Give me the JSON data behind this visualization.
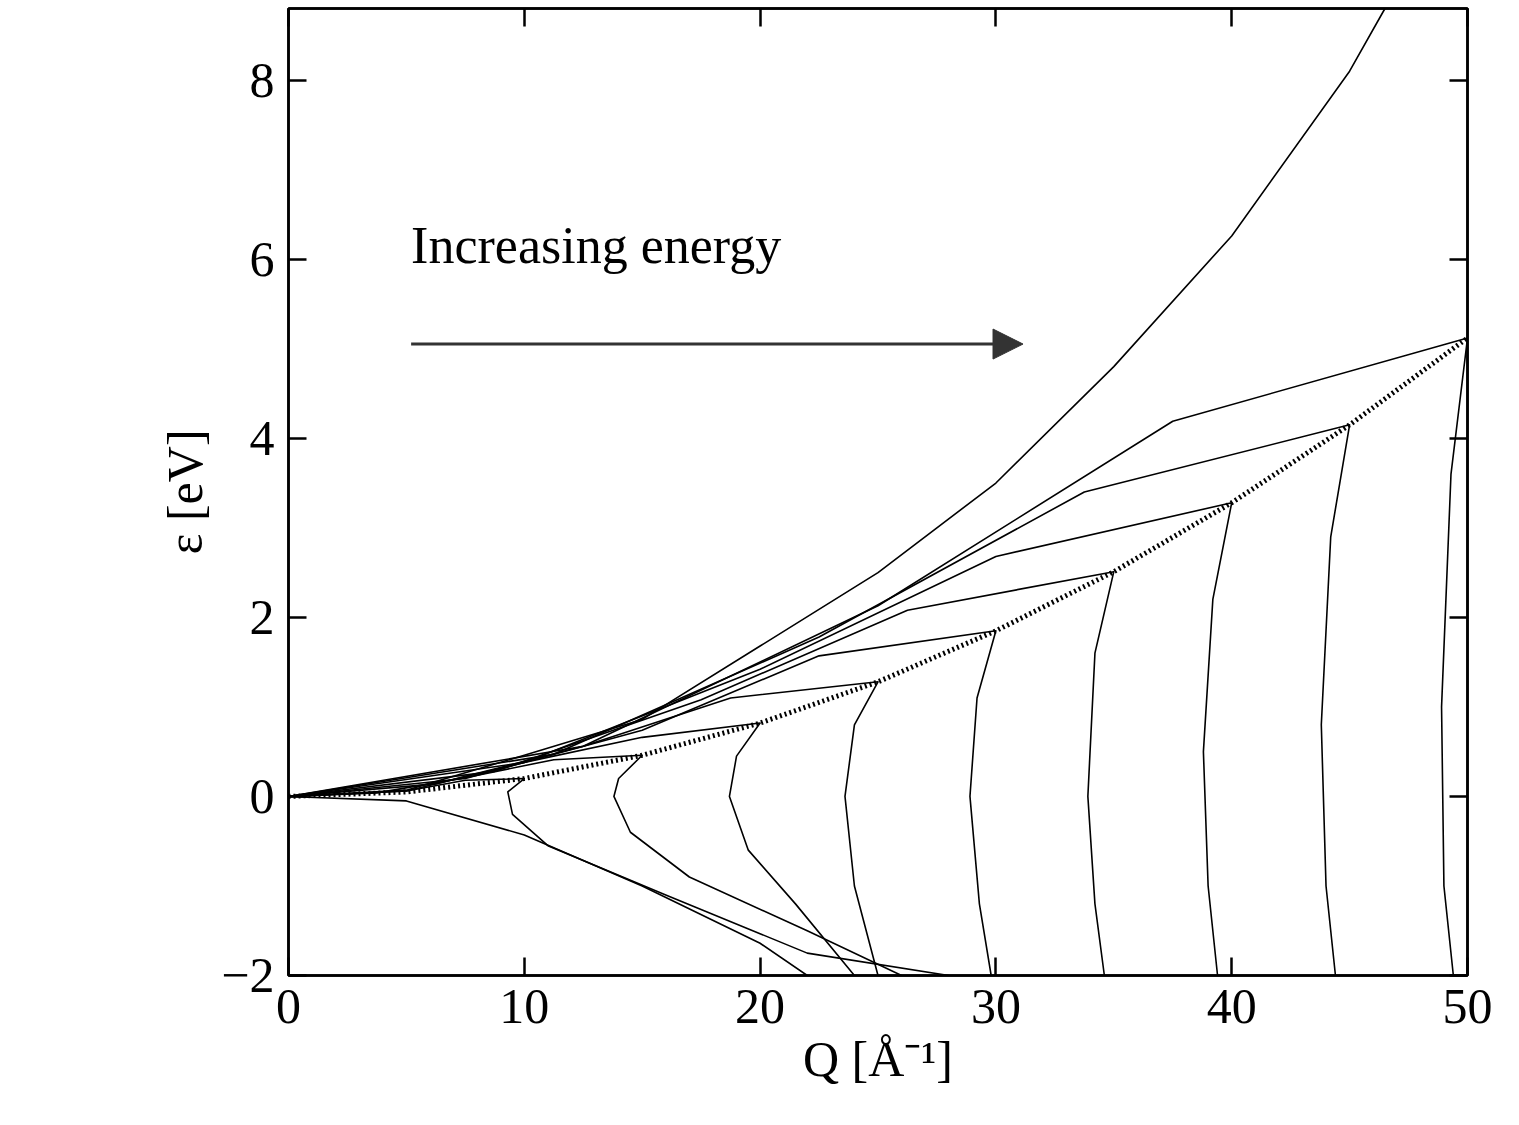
{
  "chart_data": {
    "type": "line",
    "xlabel": "Q [Å⁻¹]",
    "ylabel": "ε [eV]",
    "xlim": [
      0,
      50
    ],
    "ylim": [
      -2,
      8.8
    ],
    "xticks": [
      0,
      10,
      20,
      30,
      40,
      50
    ],
    "yticks": [
      {
        "value": -2,
        "label": "−2"
      },
      0,
      2,
      4,
      6,
      8
    ],
    "grid": false,
    "marker": "none",
    "line_style": "solid",
    "annotations": [
      "Increasing energy"
    ],
    "series": [
      {
        "color": "#000000",
        "line_style": "dotted",
        "x": [
          0,
          5,
          10,
          15,
          20,
          25,
          30,
          35,
          40,
          45,
          50
        ],
        "values": [
          0,
          0.05,
          0.2,
          0.46,
          0.82,
          1.28,
          1.85,
          2.51,
          3.28,
          4.15,
          5.12
        ]
      },
      {
        "color": "#000000",
        "x": [
          0,
          5,
          10,
          15,
          20,
          25,
          30,
          35,
          40,
          45,
          46.5
        ],
        "values": [
          0,
          0.07,
          0.46,
          0.86,
          1.68,
          2.5,
          3.5,
          4.8,
          6.26,
          8.1,
          8.8
        ]
      },
      {
        "color": "#000000",
        "x": [
          0,
          5,
          10,
          15,
          20,
          22
        ],
        "values": [
          0,
          -0.05,
          -0.43,
          -1.0,
          -1.64,
          -2
        ]
      },
      {
        "color": "#000000",
        "x": [
          0,
          2.5,
          5,
          7.5,
          10,
          9.3,
          9.5,
          11,
          16,
          22,
          28
        ],
        "values": [
          0,
          0.03,
          0.06,
          0.18,
          0.2,
          0.05,
          -0.2,
          -0.55,
          -1.1,
          -1.75,
          -2
        ]
      },
      {
        "color": "#000000",
        "x": [
          0,
          3.75,
          7.5,
          11.25,
          15,
          14,
          13.8,
          14.5,
          17,
          22,
          26
        ],
        "values": [
          0,
          0.04,
          0.21,
          0.41,
          0.46,
          0.2,
          0,
          -0.4,
          -0.9,
          -1.5,
          -2
        ]
      },
      {
        "color": "#000000",
        "x": [
          0,
          5,
          10,
          15,
          20,
          19,
          18.7,
          19.5,
          21.5,
          24
        ],
        "values": [
          0,
          0.06,
          0.38,
          0.66,
          0.82,
          0.45,
          0,
          -0.6,
          -1.2,
          -2
        ]
      },
      {
        "color": "#000000",
        "x": [
          0,
          6.25,
          12.5,
          18.75,
          25,
          24,
          23.6,
          24,
          25
        ],
        "values": [
          0,
          0.14,
          0.56,
          1.1,
          1.28,
          0.8,
          0,
          -1,
          -2
        ]
      },
      {
        "color": "#000000",
        "x": [
          0,
          7.5,
          15,
          22.5,
          30,
          29.2,
          28.9,
          29.3,
          29.8
        ],
        "values": [
          0,
          0.2,
          0.74,
          1.57,
          1.85,
          1.1,
          0,
          -1.2,
          -2
        ]
      },
      {
        "color": "#000000",
        "x": [
          0,
          8.75,
          17.5,
          26.25,
          35,
          34.2,
          33.9,
          34.2,
          34.6
        ],
        "values": [
          0,
          0.28,
          1.08,
          2.08,
          2.51,
          1.6,
          0,
          -1.2,
          -2
        ]
      },
      {
        "color": "#000000",
        "x": [
          0,
          10,
          20,
          30,
          40,
          39.2,
          38.8,
          39,
          39.4
        ],
        "values": [
          0,
          0.38,
          1.42,
          2.68,
          3.28,
          2.2,
          0.5,
          -1,
          -2
        ]
      },
      {
        "color": "#000000",
        "x": [
          0,
          11.25,
          22.5,
          33.75,
          45,
          44.2,
          43.8,
          44,
          44.4
        ],
        "values": [
          0,
          0.47,
          1.78,
          3.4,
          4.15,
          2.9,
          0.8,
          -1,
          -2
        ]
      },
      {
        "color": "#000000",
        "x": [
          0,
          12.5,
          25,
          37.5,
          50,
          49.3,
          48.9,
          49,
          49.4
        ],
        "values": [
          0,
          0.56,
          2.13,
          4.19,
          5.12,
          3.6,
          1,
          -1,
          -2
        ]
      }
    ]
  }
}
